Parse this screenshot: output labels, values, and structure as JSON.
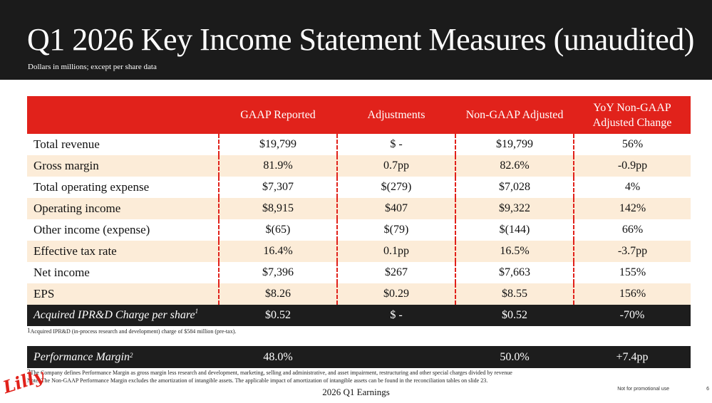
{
  "header": {
    "title": "Q1 2026 Key Income Statement Measures (unaudited)",
    "subtitle": "Dollars in millions; except per share data"
  },
  "table": {
    "columns": [
      "",
      "GAAP Reported",
      "Adjustments",
      "Non-GAAP Adjusted",
      "YoY Non-GAAP Adjusted Change"
    ],
    "rows": [
      {
        "label": "Total revenue",
        "gaap": "$19,799",
        "adj": "$ -",
        "nongaap": "$19,799",
        "yoy": "56%"
      },
      {
        "label": "Gross margin",
        "gaap": "81.9%",
        "adj": "0.7pp",
        "nongaap": "82.6%",
        "yoy": "-0.9pp"
      },
      {
        "label": "Total operating expense",
        "gaap": "$7,307",
        "adj": "$(279)",
        "nongaap": "$7,028",
        "yoy": "4%"
      },
      {
        "label": "Operating income",
        "gaap": "$8,915",
        "adj": "$407",
        "nongaap": "$9,322",
        "yoy": "142%"
      },
      {
        "label": "Other income (expense)",
        "gaap": "$(65)",
        "adj": "$(79)",
        "nongaap": "$(144)",
        "yoy": "66%"
      },
      {
        "label": "Effective tax rate",
        "gaap": "16.4%",
        "adj": "0.1pp",
        "nongaap": "16.5%",
        "yoy": "-3.7pp"
      },
      {
        "label": "Net income",
        "gaap": "$7,396",
        "adj": "$267",
        "nongaap": "$7,663",
        "yoy": "155%"
      },
      {
        "label": "EPS",
        "gaap": "$8.26",
        "adj": "$0.29",
        "nongaap": "$8.55",
        "yoy": "156%"
      }
    ],
    "ipr": {
      "label": "Acquired IPR&D Charge per share",
      "sup": "1",
      "gaap": "$0.52",
      "adj": "$ -",
      "nongaap": "$0.52",
      "yoy": "-70%"
    }
  },
  "footnote1": {
    "sup": "1",
    "text": "Acquired IPR&D (in-process research and development) charge of $584 million (pre-tax)."
  },
  "performance": {
    "label": "Performance Margin",
    "sup": "2",
    "gaap": "48.0%",
    "nongaap": "50.0%",
    "yoy": "+7.4pp"
  },
  "footnote2": {
    "sup": "2",
    "text": "The Company defines Performance Margin as gross margin less research and development, marketing, selling and administrative, and asset impairment, restructuring and other special charges divided by revenue"
  },
  "footnote3": "Note: The Non-GAAP Performance Margin excludes the amortization of intangible assets. The applicable impact of amortization of intangible assets can be found in the reconciliation tables on slide 23.",
  "footer": {
    "logo": "Lilly",
    "center": "2026 Q1 Earnings",
    "right": "Not for promotional use",
    "page": "6"
  },
  "colors": {
    "accent": "#e1221b",
    "dark": "#1b1b1b",
    "alt_row": "#fcecd8"
  }
}
